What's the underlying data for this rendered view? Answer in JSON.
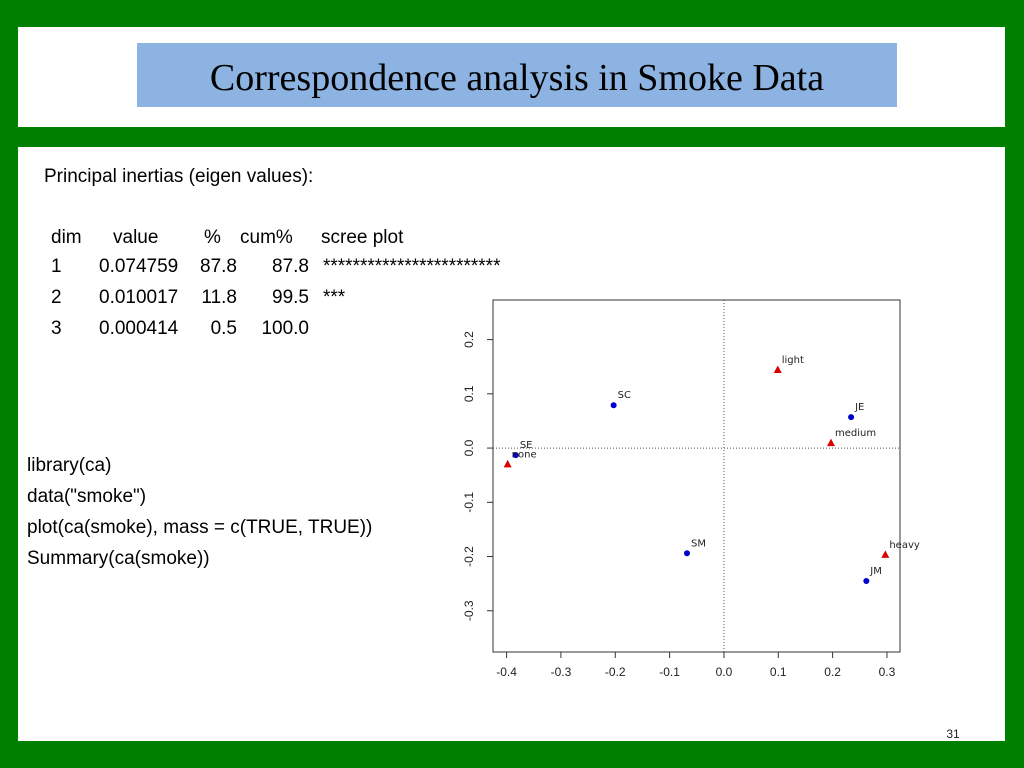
{
  "title": "Correspondence analysis in Smoke Data",
  "inertia": {
    "heading": "Principal inertias (eigen values):",
    "columns": [
      "dim",
      "value",
      "%",
      "cum%",
      "scree plot"
    ],
    "rows": [
      [
        "1",
        "0.074759",
        "87.8",
        "87.8",
        "************************"
      ],
      [
        "2",
        "0.010017",
        "11.8",
        "99.5",
        "***"
      ],
      [
        "3",
        "0.000414",
        "0.5",
        "100.0",
        ""
      ]
    ]
  },
  "code": [
    "library(ca)",
    "data(\"smoke\")",
    "plot(ca(smoke), mass = c(TRUE, TRUE))",
    "Summary(ca(smoke))"
  ],
  "page_number": "31",
  "chart_data": {
    "type": "scatter",
    "xlim": [
      -0.425,
      0.324
    ],
    "ylim": [
      -0.376,
      0.273
    ],
    "xticks": [
      -0.4,
      -0.3,
      -0.2,
      -0.1,
      {
        "value": 0,
        "label": "0.0"
      },
      0.1,
      0.2,
      0.3
    ],
    "yticks": [
      -0.3,
      -0.2,
      -0.1,
      {
        "value": 0,
        "label": "0.0"
      },
      0.1,
      0.2
    ],
    "series": [
      {
        "color": "#0000cc",
        "marker": "circle",
        "labels": [
          "SE",
          "JE",
          "SM",
          "JM",
          "SC"
        ],
        "x": [
          -0.383,
          0.234,
          -0.068,
          0.262,
          -0.203
        ],
        "values": [
          -0.013,
          0.057,
          -0.194,
          -0.245,
          0.079
        ]
      },
      {
        "color": "#dd0000",
        "marker": "triangle",
        "labels": [
          "none",
          "light",
          "medium",
          "heavy"
        ],
        "x": [
          -0.398,
          0.099,
          0.197,
          0.297
        ],
        "values": [
          -0.03,
          0.144,
          0.009,
          -0.197
        ]
      }
    ]
  }
}
